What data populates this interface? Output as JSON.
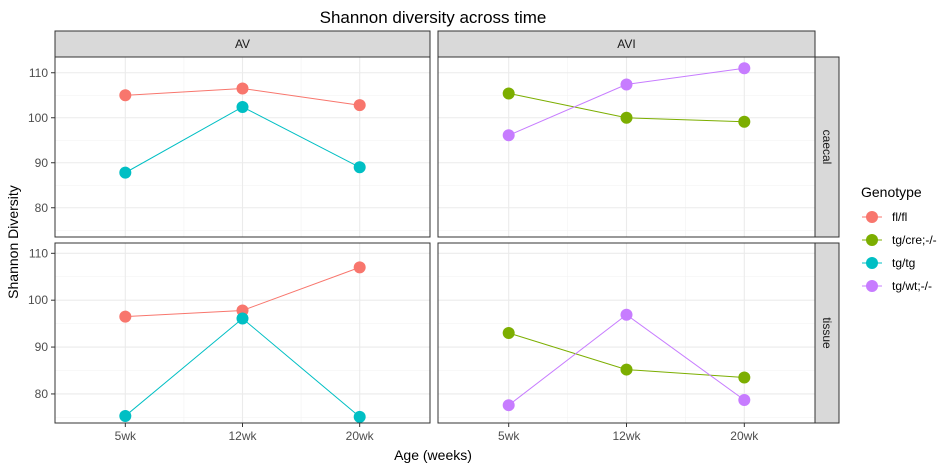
{
  "chart_data": {
    "type": "line",
    "title": "Shannon diversity across time",
    "xlabel": "Age (weeks)",
    "ylabel": "Shannon Diversity",
    "categories": [
      "5wk",
      "12wk",
      "20wk"
    ],
    "facet_columns": [
      "AV",
      "AVI"
    ],
    "facet_rows": [
      "caecal",
      "tissue"
    ],
    "legend": {
      "title": "Genotype",
      "placement": "right",
      "entries": [
        {
          "name": "fl/fl",
          "color": "#F8766D"
        },
        {
          "name": "tg/cre;-/-",
          "color": "#7CAE00"
        },
        {
          "name": "tg/tg",
          "color": "#00BFC4"
        },
        {
          "name": "tg/wt;-/-",
          "color": "#C77CFF"
        }
      ]
    },
    "grid": true,
    "panels": [
      {
        "column": "AV",
        "row": "caecal",
        "ylim": [
          73.5,
          113.5
        ],
        "yticks": [
          80,
          90,
          100,
          110
        ],
        "series": [
          {
            "name": "fl/fl",
            "values": [
              105.0,
              106.5,
              102.8
            ]
          },
          {
            "name": "tg/tg",
            "values": [
              87.8,
              102.4,
              89.0
            ]
          }
        ]
      },
      {
        "column": "AVI",
        "row": "caecal",
        "ylim": [
          73.5,
          113.5
        ],
        "yticks": [
          80,
          90,
          100,
          110
        ],
        "series": [
          {
            "name": "tg/cre;-/-",
            "values": [
              105.4,
              100.0,
              99.1
            ]
          },
          {
            "name": "tg/wt;-/-",
            "values": [
              96.1,
              107.4,
              111.0
            ]
          }
        ]
      },
      {
        "column": "AV",
        "row": "tissue",
        "ylim": [
          73.8,
          112.2
        ],
        "yticks": [
          80,
          90,
          100,
          110
        ],
        "series": [
          {
            "name": "fl/fl",
            "values": [
              96.5,
              97.8,
              107.0
            ]
          },
          {
            "name": "tg/tg",
            "values": [
              75.3,
              96.1,
              75.1
            ]
          }
        ]
      },
      {
        "column": "AVI",
        "row": "tissue",
        "ylim": [
          73.8,
          112.2
        ],
        "yticks": [
          80,
          90,
          100,
          110
        ],
        "series": [
          {
            "name": "tg/cre;-/-",
            "values": [
              93.0,
              85.2,
              83.5
            ]
          },
          {
            "name": "tg/wt;-/-",
            "values": [
              77.6,
              96.9,
              78.7
            ]
          }
        ]
      }
    ]
  }
}
